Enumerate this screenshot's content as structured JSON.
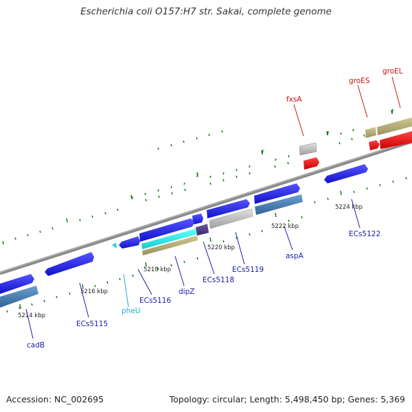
{
  "title": "Escherichia coli O157:H7 str. Sakai, complete genome",
  "footer": {
    "accession": "Accession: NC_002695",
    "topology": "Topology: circular; Length: 5,498,450 bp; Genes: 5,369"
  },
  "colors": {
    "forward_gene": "#1a1aee",
    "reverse_gene": "#3d79b3",
    "trna": "#33ccee",
    "rrna": "#b8b077",
    "other": "#c0c0c0",
    "highlight": "#ee1111",
    "backbone": "#8a8a8a",
    "ticks": "#1a7a1a",
    "label_blue": "#1a1aaa",
    "label_red": "#cc1111",
    "label_cyan": "#22aadd"
  },
  "kbp_labels": [
    "5214 kbp",
    "5216 kbp",
    "5218 kbp",
    "5220 kbp",
    "5222 kbp",
    "5224 kbp"
  ],
  "gene_labels": {
    "cadB": "cadB",
    "ECs5115": "ECs5115",
    "pheU": "pheU",
    "ECs5116": "ECs5116",
    "dipZ": "dipZ",
    "ECs5118": "ECs5118",
    "ECs5119": "ECs5119",
    "aspA": "aspA",
    "ECs5122": "ECs5122",
    "fxsA": "fxsA",
    "groES": "groES",
    "groEL": "groEL"
  }
}
